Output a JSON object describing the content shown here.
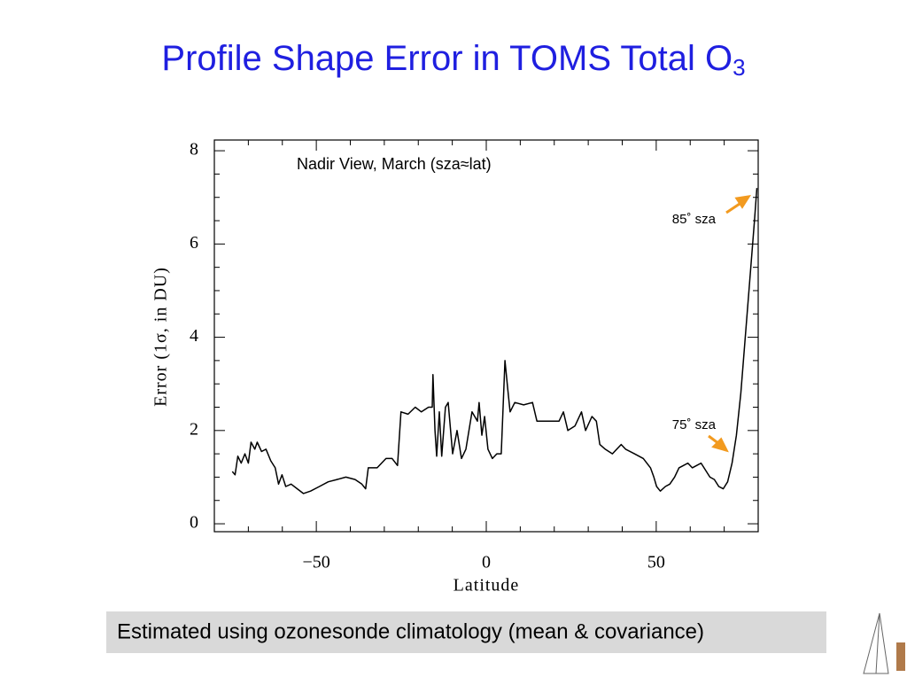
{
  "chart_data": {
    "type": "line",
    "title": "Profile Shape Error in TOMS Total O",
    "title_subscript": "3",
    "xlabel": "Latitude",
    "ylabel": "Error (1σ, in DU)",
    "annotations": [
      "Nadir View, March (sza≈lat)",
      "85˚ sza",
      "75˚ sza"
    ],
    "footer": "Estimated using ozonesonde climatology (mean & covariance)",
    "xlim": [
      -80,
      80
    ],
    "ylim": [
      -0.17,
      8.23
    ],
    "xticks": [
      {
        "value": -50,
        "label": "−50"
      },
      0,
      50
    ],
    "yticks": [
      0,
      2,
      4,
      6,
      8
    ],
    "xticks_minor": [
      -80,
      -70,
      -60,
      -40,
      -30,
      -20,
      -10,
      10,
      20,
      30,
      40,
      60,
      70,
      80
    ],
    "yticks_minor": [
      0.5,
      1,
      1.5,
      2.5,
      3,
      3.5,
      4.5,
      5,
      5.5,
      6.5,
      7,
      7.5
    ],
    "series": [
      {
        "color": "#000000",
        "x": [
          -74.7,
          -73.9,
          -73.1,
          -72.1,
          -71.0,
          -70.0,
          -69.2,
          -68.1,
          -67.4,
          -66.1,
          -64.8,
          -63.4,
          -62.1,
          -61.1,
          -60.1,
          -59.0,
          -57.4,
          -55.6,
          -53.8,
          -51.7,
          -49.1,
          -46.5,
          -43.9,
          -41.3,
          -38.6,
          -36.6,
          -35.5,
          -34.7,
          -32.1,
          -29.5,
          -27.7,
          -26.1,
          -25.1,
          -23.0,
          -20.9,
          -19.1,
          -17.0,
          -15.9,
          -15.7,
          -15.1,
          -14.6,
          -13.8,
          -13.1,
          -12.0,
          -11.2,
          -9.9,
          -8.6,
          -7.3,
          -6.0,
          -4.2,
          -2.6,
          -2.1,
          -1.3,
          -0.5,
          0.5,
          1.8,
          3.1,
          4.4,
          5.5,
          6.3,
          7.0,
          8.4,
          11.0,
          13.6,
          14.9,
          18.8,
          21.4,
          22.7,
          24.0,
          26.1,
          28.0,
          29.2,
          31.1,
          32.4,
          33.4,
          35.0,
          37.1,
          39.7,
          41.0,
          43.6,
          46.2,
          48.3,
          49.3,
          50.1,
          51.2,
          52.7,
          54.0,
          55.4,
          56.7,
          58.0,
          59.3,
          60.6,
          61.9,
          63.2,
          64.5,
          65.8,
          67.1,
          68.4,
          69.7,
          71.0,
          72.3,
          73.6,
          74.9,
          76.2,
          77.5,
          78.9,
          79.6
        ],
        "values": [
          1.12,
          1.05,
          1.45,
          1.3,
          1.5,
          1.3,
          1.75,
          1.6,
          1.75,
          1.55,
          1.6,
          1.35,
          1.2,
          0.85,
          1.05,
          0.8,
          0.85,
          0.75,
          0.65,
          0.7,
          0.8,
          0.9,
          0.95,
          1.0,
          0.95,
          0.85,
          0.75,
          1.2,
          1.2,
          1.4,
          1.4,
          1.25,
          2.4,
          2.35,
          2.5,
          2.4,
          2.5,
          2.5,
          3.2,
          2.0,
          1.45,
          2.4,
          1.45,
          2.5,
          2.6,
          1.5,
          2.0,
          1.4,
          1.6,
          2.4,
          2.2,
          2.6,
          1.9,
          2.3,
          1.6,
          1.4,
          1.5,
          1.5,
          3.5,
          2.9,
          2.4,
          2.6,
          2.55,
          2.6,
          2.2,
          2.2,
          2.2,
          2.4,
          2.0,
          2.1,
          2.4,
          2.0,
          2.3,
          2.2,
          1.7,
          1.6,
          1.5,
          1.7,
          1.6,
          1.5,
          1.4,
          1.2,
          1.0,
          0.8,
          0.7,
          0.8,
          0.85,
          1.0,
          1.2,
          1.25,
          1.3,
          1.2,
          1.25,
          1.3,
          1.15,
          1.0,
          0.95,
          0.8,
          0.75,
          0.9,
          1.3,
          1.9,
          2.8,
          4.0,
          5.2,
          6.5,
          7.2
        ]
      }
    ]
  }
}
